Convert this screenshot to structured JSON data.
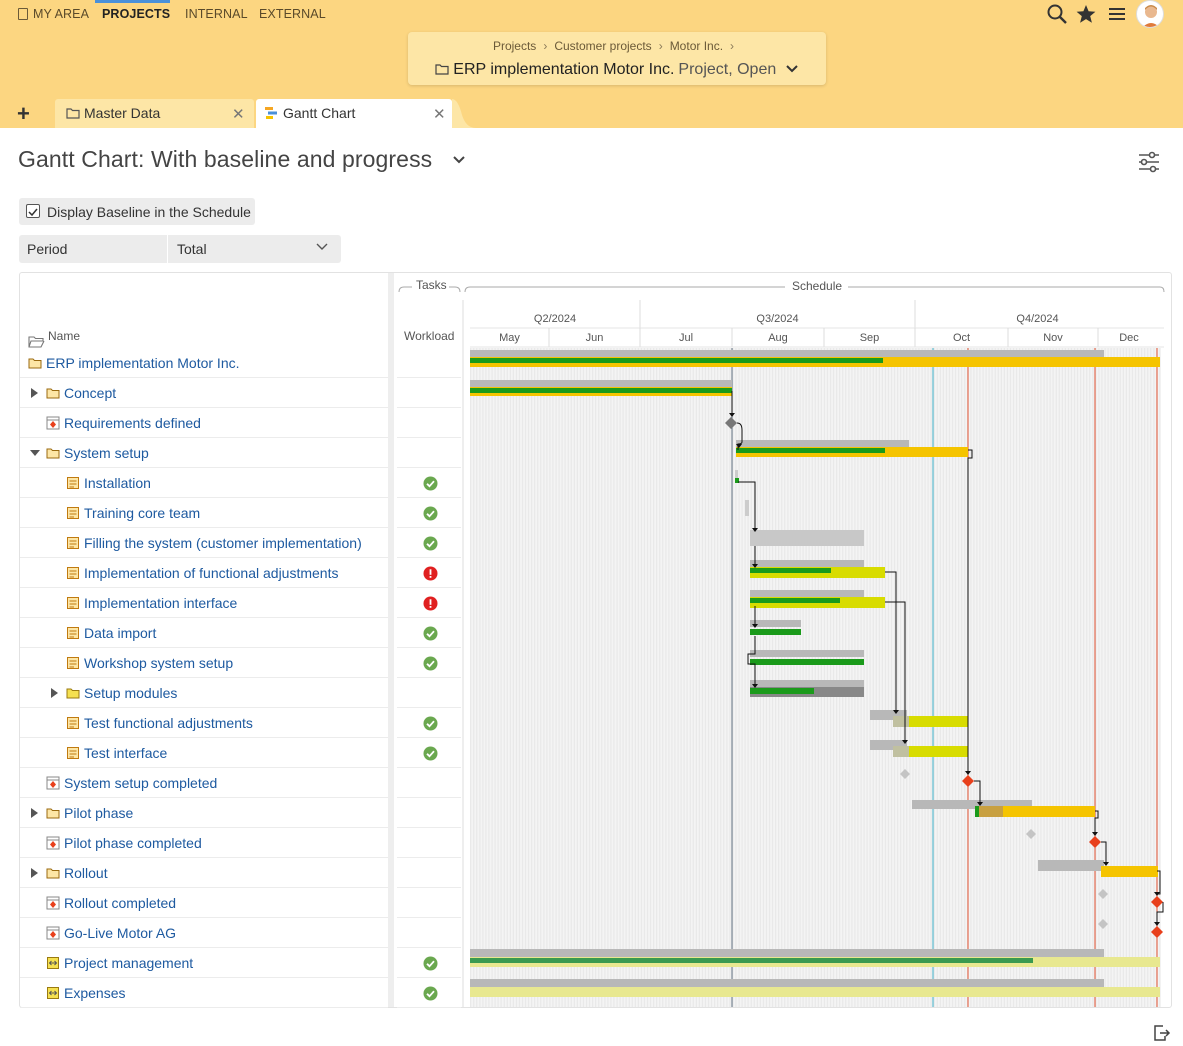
{
  "topnav": {
    "items": [
      {
        "label": "MY AREA"
      },
      {
        "label": "PROJECTS"
      },
      {
        "label": "INTERNAL"
      },
      {
        "label": "EXTERNAL"
      }
    ]
  },
  "breadcrumb": {
    "items": [
      "Projects",
      "Customer projects",
      "Motor Inc."
    ],
    "title": "ERP implementation Motor Inc.",
    "status": "Project, Open"
  },
  "tabs": [
    {
      "label": "Master Data"
    },
    {
      "label": "Gantt Chart"
    }
  ],
  "page": {
    "title": "Gantt Chart: With baseline and progress"
  },
  "filters": {
    "baseline_label": "Display Baseline in the Schedule",
    "period_label": "Period",
    "period_value": "Total"
  },
  "table": {
    "name_header": "Name",
    "tasks_header": "Tasks",
    "workload_header": "Workload",
    "schedule_header": "Schedule"
  },
  "timeline": {
    "quarters": [
      "Q2/2024",
      "Q3/2024",
      "Q4/2024"
    ],
    "months": [
      "May",
      "Jun",
      "Jul",
      "Aug",
      "Sep",
      "Oct",
      "Nov",
      "Dec"
    ]
  },
  "colors": {
    "accent": "#fcd681",
    "progress": "#1a9a1a",
    "bar": "#f5c400",
    "baseline": "#b8b8b8",
    "milestone": "#e8401c",
    "link": "#1e5aa0"
  },
  "rows": [
    {
      "label": "ERP implementation Motor Inc.",
      "icon": "folder-icon",
      "level": 0,
      "expand": "",
      "status": ""
    },
    {
      "label": "Concept",
      "icon": "folder-icon",
      "level": 1,
      "expand": "right",
      "status": ""
    },
    {
      "label": "Requirements defined",
      "icon": "milestone-icon",
      "level": 1,
      "expand": "",
      "status": ""
    },
    {
      "label": "System setup",
      "icon": "folder-icon",
      "level": 1,
      "expand": "down",
      "status": ""
    },
    {
      "label": "Installation",
      "icon": "task-icon",
      "level": 2,
      "expand": "",
      "status": "ok"
    },
    {
      "label": "Training core team",
      "icon": "task-icon",
      "level": 2,
      "expand": "",
      "status": "ok"
    },
    {
      "label": "Filling the system (customer implementation)",
      "icon": "task-icon",
      "level": 2,
      "expand": "",
      "status": "ok"
    },
    {
      "label": "Implementation of functional adjustments",
      "icon": "task-icon",
      "level": 2,
      "expand": "",
      "status": "error"
    },
    {
      "label": "Implementation interface",
      "icon": "task-icon",
      "level": 2,
      "expand": "",
      "status": "error"
    },
    {
      "label": "Data import",
      "icon": "task-icon",
      "level": 2,
      "expand": "",
      "status": "ok"
    },
    {
      "label": "Workshop system setup",
      "icon": "task-icon",
      "level": 2,
      "expand": "",
      "status": "ok"
    },
    {
      "label": "Setup modules",
      "icon": "folder-yellow-icon",
      "level": 2,
      "expand": "right",
      "status": ""
    },
    {
      "label": "Test functional adjustments",
      "icon": "task-icon",
      "level": 2,
      "expand": "",
      "status": "ok"
    },
    {
      "label": "Test interface",
      "icon": "task-icon",
      "level": 2,
      "expand": "",
      "status": "ok"
    },
    {
      "label": "System setup completed",
      "icon": "milestone-icon",
      "level": 1,
      "expand": "",
      "status": ""
    },
    {
      "label": "Pilot phase",
      "icon": "folder-icon",
      "level": 1,
      "expand": "right",
      "status": ""
    },
    {
      "label": "Pilot phase completed",
      "icon": "milestone-icon",
      "level": 1,
      "expand": "",
      "status": ""
    },
    {
      "label": "Rollout",
      "icon": "folder-icon",
      "level": 1,
      "expand": "right",
      "status": ""
    },
    {
      "label": "Rollout completed",
      "icon": "milestone-icon",
      "level": 1,
      "expand": "",
      "status": ""
    },
    {
      "label": "Go-Live Motor AG",
      "icon": "milestone-icon",
      "level": 1,
      "expand": "",
      "status": ""
    },
    {
      "label": "Project management",
      "icon": "recurring-icon",
      "level": 1,
      "expand": "",
      "status": "ok"
    },
    {
      "label": "Expenses",
      "icon": "recurring-icon",
      "level": 1,
      "expand": "",
      "status": "ok"
    }
  ]
}
